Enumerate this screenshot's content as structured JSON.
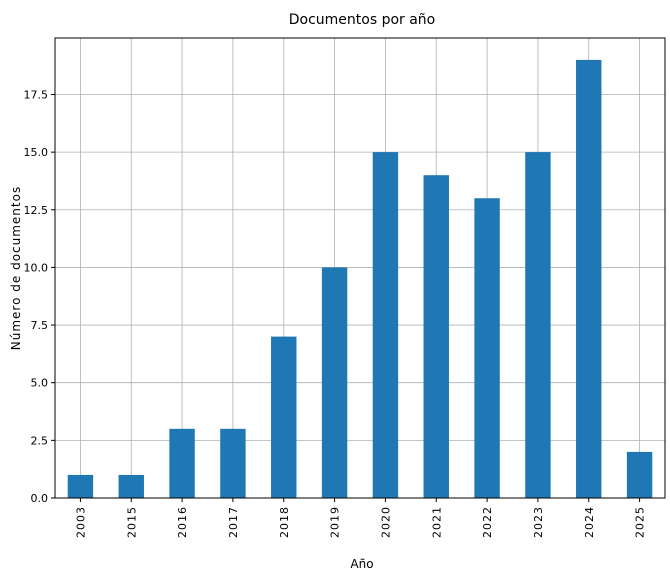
{
  "chart_data": {
    "type": "bar",
    "title": "Documentos por año",
    "xlabel": "Año",
    "ylabel": "Número de documentos",
    "categories": [
      "2003",
      "2015",
      "2016",
      "2017",
      "2018",
      "2019",
      "2020",
      "2021",
      "2022",
      "2023",
      "2024",
      "2025"
    ],
    "values": [
      1,
      1,
      3,
      3,
      7,
      10,
      15,
      14,
      13,
      15,
      19,
      2
    ],
    "yticks": [
      "0.0",
      "2.5",
      "5.0",
      "7.5",
      "10.0",
      "12.5",
      "15.0",
      "17.5"
    ],
    "ylim": [
      0,
      19.95
    ],
    "grid": true,
    "bar_color": "#1f77b4",
    "grid_color": "#b0b0b0"
  }
}
